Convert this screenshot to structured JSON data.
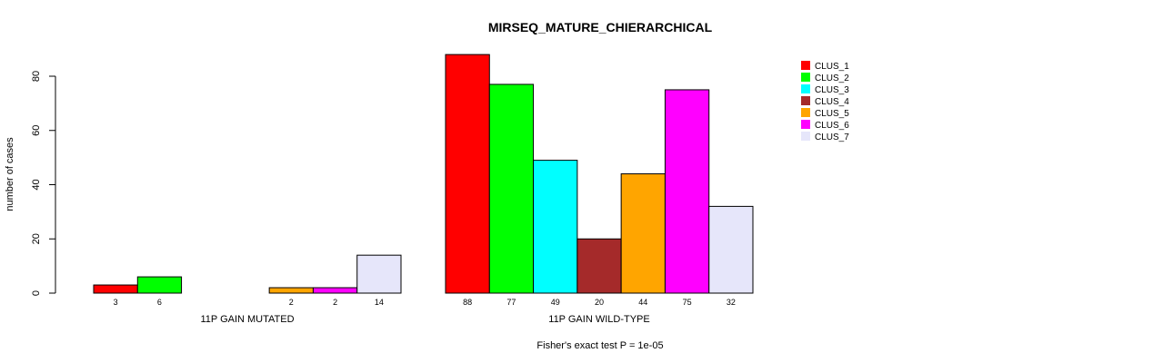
{
  "chart_data": {
    "type": "bar",
    "title": "MIRSEQ_MATURE_CHIERARCHICAL",
    "ylabel": "number of cases",
    "xlabel": "",
    "ylim": [
      0,
      88
    ],
    "yticks": [
      0,
      20,
      40,
      60,
      80
    ],
    "grid": false,
    "legend_position": "top-right",
    "groups": [
      "11P GAIN MUTATED",
      "11P GAIN WILD-TYPE"
    ],
    "series": [
      {
        "name": "CLUS_1",
        "color": "#FF0000",
        "values": [
          3,
          88
        ]
      },
      {
        "name": "CLUS_2",
        "color": "#00FF00",
        "values": [
          6,
          77
        ]
      },
      {
        "name": "CLUS_3",
        "color": "#00FFFF",
        "values": [
          0,
          49
        ]
      },
      {
        "name": "CLUS_4",
        "color": "#A52A2A",
        "values": [
          0,
          20
        ]
      },
      {
        "name": "CLUS_5",
        "color": "#FFA500",
        "values": [
          2,
          44
        ]
      },
      {
        "name": "CLUS_6",
        "color": "#FF00FF",
        "values": [
          2,
          75
        ]
      },
      {
        "name": "CLUS_7",
        "color": "#E6E6FA",
        "values": [
          14,
          32
        ]
      }
    ],
    "footnote": "Fisher's exact test P = 1e-05"
  }
}
